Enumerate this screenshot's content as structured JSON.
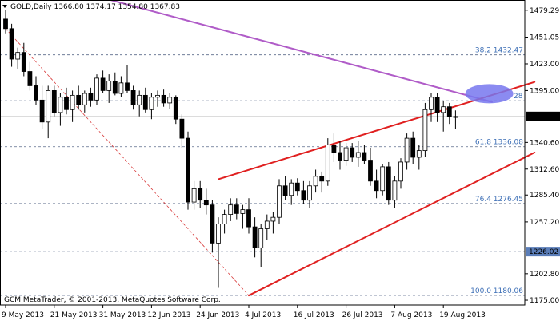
{
  "chart_data": {
    "type": "candlestick",
    "header": {
      "symbol": "GOLD,Daily",
      "ohlc": [
        "1366.80",
        "1374.17",
        "1354.80",
        "1367.83"
      ]
    },
    "current_price": {
      "label": "1367.83",
      "value": 1367.83
    },
    "y_axis": {
      "min": 1170,
      "max": 1490,
      "ticks": [
        {
          "value": 1479.29,
          "label": "1479.29"
        },
        {
          "value": 1451.05,
          "label": "1451.05"
        },
        {
          "value": 1423.0,
          "label": "1423.00"
        },
        {
          "value": 1395.0,
          "label": "1395.00"
        },
        {
          "value": 1340.6,
          "label": "1340.60"
        },
        {
          "value": 1312.6,
          "label": "1312.60"
        },
        {
          "value": 1285.4,
          "label": "1285.40"
        },
        {
          "value": 1257.2,
          "label": "1257.20"
        },
        {
          "value": 1202.8,
          "label": "1202.80"
        },
        {
          "value": 1175.0,
          "label": "1175.00"
        }
      ]
    },
    "fib_levels": [
      {
        "value": 1432.47,
        "label": "38.2 1432.47"
      },
      {
        "value": 1384.28,
        "label": "1384.28",
        "partial_label": "28"
      },
      {
        "value": 1336.08,
        "label": "61.8 1336.08"
      },
      {
        "value": 1276.45,
        "label": "76.4 1276.45"
      },
      {
        "value": 1226.02,
        "label": "1226.02",
        "boxed": true
      },
      {
        "value": 1180.06,
        "label": "100.0 1180.06"
      }
    ],
    "x_axis": {
      "labels": [
        {
          "index": 0,
          "label": "9 May 2013"
        },
        {
          "index": 8,
          "label": "21 May 2013"
        },
        {
          "index": 16,
          "label": "31 May 2013"
        },
        {
          "index": 24,
          "label": "12 Jun 2013"
        },
        {
          "index": 32,
          "label": "24 Jun 2013"
        },
        {
          "index": 40,
          "label": "4 Jul 2013"
        },
        {
          "index": 48,
          "label": "16 Jul 2013"
        },
        {
          "index": 56,
          "label": "26 Jul 2013"
        },
        {
          "index": 64,
          "label": "7 Aug 2013"
        },
        {
          "index": 72,
          "label": "19 Aug 2013"
        }
      ]
    },
    "candles": [
      [
        1470,
        1480,
        1455,
        1460
      ],
      [
        1460,
        1465,
        1420,
        1428
      ],
      [
        1428,
        1440,
        1418,
        1435
      ],
      [
        1435,
        1445,
        1410,
        1415
      ],
      [
        1415,
        1425,
        1395,
        1400
      ],
      [
        1400,
        1410,
        1380,
        1385
      ],
      [
        1385,
        1400,
        1355,
        1362
      ],
      [
        1362,
        1400,
        1345,
        1395
      ],
      [
        1395,
        1400,
        1368,
        1372
      ],
      [
        1372,
        1392,
        1358,
        1388
      ],
      [
        1388,
        1398,
        1370,
        1375
      ],
      [
        1375,
        1395,
        1362,
        1390
      ],
      [
        1390,
        1400,
        1375,
        1380
      ],
      [
        1380,
        1395,
        1372,
        1392
      ],
      [
        1392,
        1398,
        1378,
        1385
      ],
      [
        1385,
        1412,
        1380,
        1408
      ],
      [
        1408,
        1416,
        1392,
        1395
      ],
      [
        1395,
        1412,
        1382,
        1405
      ],
      [
        1405,
        1414,
        1390,
        1392
      ],
      [
        1392,
        1410,
        1388,
        1403
      ],
      [
        1403,
        1422,
        1392,
        1395
      ],
      [
        1395,
        1400,
        1375,
        1380
      ],
      [
        1380,
        1395,
        1368,
        1390
      ],
      [
        1390,
        1398,
        1372,
        1375
      ],
      [
        1375,
        1392,
        1365,
        1388
      ],
      [
        1388,
        1395,
        1378,
        1390
      ],
      [
        1390,
        1396,
        1378,
        1382
      ],
      [
        1382,
        1392,
        1376,
        1388
      ],
      [
        1388,
        1390,
        1360,
        1365
      ],
      [
        1365,
        1370,
        1335,
        1345
      ],
      [
        1345,
        1352,
        1270,
        1278
      ],
      [
        1278,
        1300,
        1270,
        1292
      ],
      [
        1292,
        1300,
        1272,
        1280
      ],
      [
        1280,
        1292,
        1265,
        1275
      ],
      [
        1275,
        1280,
        1225,
        1235
      ],
      [
        1235,
        1262,
        1188,
        1255
      ],
      [
        1255,
        1270,
        1245,
        1265
      ],
      [
        1265,
        1282,
        1258,
        1275
      ],
      [
        1275,
        1282,
        1260,
        1266
      ],
      [
        1266,
        1275,
        1250,
        1270
      ],
      [
        1270,
        1282,
        1245,
        1252
      ],
      [
        1252,
        1262,
        1220,
        1230
      ],
      [
        1230,
        1255,
        1210,
        1250
      ],
      [
        1250,
        1265,
        1238,
        1258
      ],
      [
        1258,
        1268,
        1245,
        1262
      ],
      [
        1262,
        1302,
        1255,
        1295
      ],
      [
        1295,
        1305,
        1280,
        1285
      ],
      [
        1285,
        1302,
        1275,
        1298
      ],
      [
        1298,
        1303,
        1285,
        1290
      ],
      [
        1290,
        1300,
        1276,
        1280
      ],
      [
        1280,
        1300,
        1272,
        1295
      ],
      [
        1295,
        1312,
        1288,
        1305
      ],
      [
        1305,
        1310,
        1288,
        1300
      ],
      [
        1300,
        1345,
        1295,
        1338
      ],
      [
        1338,
        1350,
        1320,
        1330
      ],
      [
        1330,
        1342,
        1312,
        1322
      ],
      [
        1322,
        1340,
        1316,
        1335
      ],
      [
        1335,
        1340,
        1320,
        1325
      ],
      [
        1325,
        1342,
        1315,
        1330
      ],
      [
        1330,
        1338,
        1318,
        1322
      ],
      [
        1322,
        1335,
        1295,
        1300
      ],
      [
        1300,
        1312,
        1282,
        1290
      ],
      [
        1290,
        1318,
        1285,
        1315
      ],
      [
        1315,
        1320,
        1275,
        1280
      ],
      [
        1280,
        1305,
        1272,
        1300
      ],
      [
        1300,
        1324,
        1292,
        1320
      ],
      [
        1320,
        1350,
        1312,
        1345
      ],
      [
        1345,
        1352,
        1318,
        1325
      ],
      [
        1325,
        1338,
        1312,
        1332
      ],
      [
        1332,
        1382,
        1325,
        1375
      ],
      [
        1375,
        1392,
        1362,
        1388
      ],
      [
        1388,
        1392,
        1362,
        1372
      ],
      [
        1372,
        1384,
        1352,
        1378
      ],
      [
        1378,
        1382,
        1360,
        1368
      ],
      [
        1366.8,
        1374.17,
        1354.8,
        1367.83
      ]
    ],
    "trendlines": [
      {
        "name": "purple-resistance",
        "color": "#b05cc8",
        "p1": [
          -15,
          1545
        ],
        "p2": [
          80,
          1383
        ]
      },
      {
        "name": "upper-channel",
        "color": "#e02020",
        "p1": [
          35,
          1302
        ],
        "p2": [
          87,
          1404
        ]
      },
      {
        "name": "lower-channel",
        "color": "#e02020",
        "p1": [
          40,
          1180
        ],
        "p2": [
          87,
          1330
        ]
      },
      {
        "name": "dashed-fib-line",
        "color": "#d83a3a",
        "dashed": true,
        "p1": [
          0,
          1460
        ],
        "p2": [
          40,
          1180
        ]
      }
    ],
    "highlight_ellipse": {
      "index": 76,
      "value": 1390,
      "color": "#7777ee"
    },
    "watermark": "GCM MetaTrader, © 2001-2013, MetaQuotes Software Corp.",
    "colors": {
      "axis": "#000000",
      "grid_dash": "#5a6a8a",
      "fib_text": "#3d6fb6",
      "current_box_bg": "#000000",
      "current_box_text": "#ffffff",
      "boxed_level_bg": "#5a7db8"
    }
  }
}
